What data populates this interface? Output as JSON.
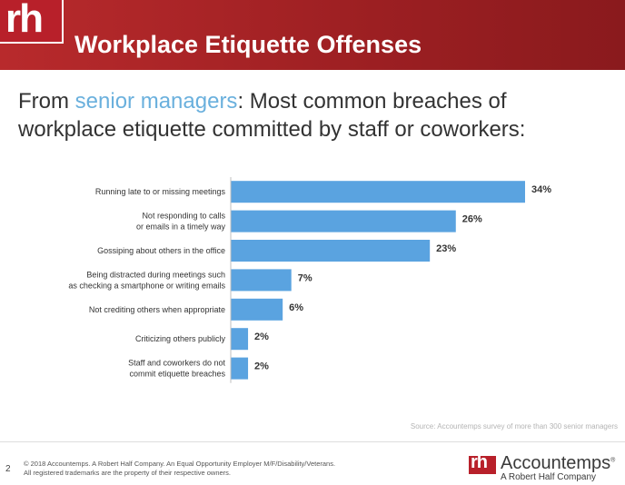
{
  "header": {
    "logo_text": "rh",
    "title": "Workplace Etiquette Offenses",
    "accent_color": "#a8262a"
  },
  "subtitle": {
    "before": "From ",
    "highlight": "senior managers",
    "after": ": Most common breaches of workplace etiquette committed by staff or coworkers:",
    "highlight_color": "#6ab0dd"
  },
  "chart_data": {
    "type": "bar",
    "orientation": "horizontal",
    "title": "",
    "xlabel": "",
    "ylabel": "",
    "xlim": [
      0,
      34
    ],
    "grid": false,
    "legend": "none",
    "bar_color": "#5aa3e0",
    "categories": [
      [
        "Running late to or missing meetings"
      ],
      [
        "Not responding to calls",
        "or emails in a timely way"
      ],
      [
        "Gossiping about others in the office"
      ],
      [
        "Being distracted during meetings such",
        "as checking a smartphone or writing emails"
      ],
      [
        "Not crediting others when appropriate"
      ],
      [
        "Criticizing others publicly"
      ],
      [
        "Staff and coworkers do not",
        "commit etiquette breaches"
      ]
    ],
    "values": [
      34,
      26,
      23,
      7,
      6,
      2,
      2
    ],
    "value_labels": [
      "34%",
      "26%",
      "23%",
      "7%",
      "6%",
      "2%",
      "2%"
    ]
  },
  "source": "Source: Accountemps survey of more than 300 senior managers",
  "footer": {
    "page_number": "2",
    "copyright_line1": "© 2018 Accountemps. A Robert Half Company. An Equal Opportunity Employer M/F/Disability/Veterans.",
    "copyright_line2": "All registered trademarks are the property of their respective owners.",
    "brand_badge": "rh",
    "brand_name": "Accountemps",
    "brand_reg": "®",
    "brand_sub": "A Robert Half Company"
  }
}
